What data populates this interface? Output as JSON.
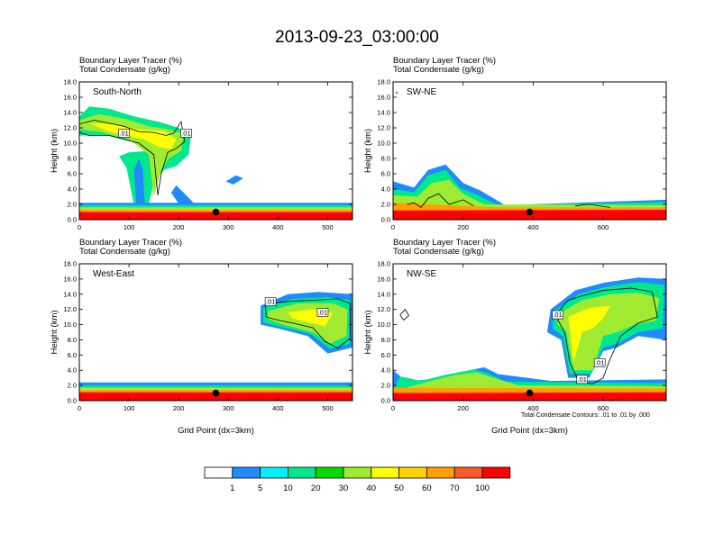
{
  "title": "2013-09-23_03:00:00",
  "variable_labels": [
    "Boundary Layer Tracer   (%)",
    "Total Condensate   (g/kg)"
  ],
  "x_axis_label": "Grid Point (dx=3km)",
  "y_axis_label": "Height (km)",
  "contour_note": "Total Condensate Contours: .01 to .01 by .000",
  "contour_label": ".01",
  "colors": {
    "fill_levels": [
      "#ffffff",
      "#1e8cff",
      "#00f0ff",
      "#00e88c",
      "#00dc00",
      "#a0eb32",
      "#ffff00",
      "#ffd200",
      "#ffa000",
      "#ff5a28",
      "#ff0000"
    ],
    "colorbar_labels": [
      "1",
      "5",
      "10",
      "20",
      "30",
      "40",
      "50",
      "60",
      "70",
      "100"
    ]
  },
  "chart_data": [
    {
      "type": "heatmap",
      "name": "South-North",
      "xlabel": "",
      "ylabel": "Height (km)",
      "xlim": [
        0,
        550
      ],
      "ylim": [
        0,
        18
      ],
      "xticks": [
        "0",
        "100",
        "200",
        "300",
        "400",
        "500"
      ],
      "yticks": [
        "0.0",
        "2.0",
        "4.0",
        "6.0",
        "8.0",
        "10.0",
        "12.0",
        "14.0",
        "16.0",
        "18.0"
      ],
      "point_marker_x": 275
    },
    {
      "type": "heatmap",
      "name": "SW-NE",
      "xlabel": "",
      "ylabel": "Height (km)",
      "xlim": [
        0,
        780
      ],
      "ylim": [
        0,
        18
      ],
      "xticks": [
        "0",
        "200",
        "400",
        "600"
      ],
      "yticks": [
        "0.0",
        "2.0",
        "4.0",
        "6.0",
        "8.0",
        "10.0",
        "12.0",
        "14.0",
        "16.0",
        "18.0"
      ],
      "point_marker_x": 390
    },
    {
      "type": "heatmap",
      "name": "West-East",
      "xlabel": "Grid Point (dx=3km)",
      "ylabel": "Height (km)",
      "xlim": [
        0,
        550
      ],
      "ylim": [
        0,
        18
      ],
      "xticks": [
        "0",
        "100",
        "200",
        "300",
        "400",
        "500"
      ],
      "yticks": [
        "0.0",
        "2.0",
        "4.0",
        "6.0",
        "8.0",
        "10.0",
        "12.0",
        "14.0",
        "16.0",
        "18.0"
      ],
      "point_marker_x": 275
    },
    {
      "type": "heatmap",
      "name": "NW-SE",
      "xlabel": "Grid Point (dx=3km)",
      "ylabel": "Height (km)",
      "xlim": [
        0,
        780
      ],
      "ylim": [
        0,
        18
      ],
      "xticks": [
        "0",
        "200",
        "400",
        "600"
      ],
      "yticks": [
        "0.0",
        "2.0",
        "4.0",
        "6.0",
        "8.0",
        "10.0",
        "12.0",
        "14.0",
        "16.0",
        "18.0"
      ],
      "point_marker_x": 390
    }
  ]
}
